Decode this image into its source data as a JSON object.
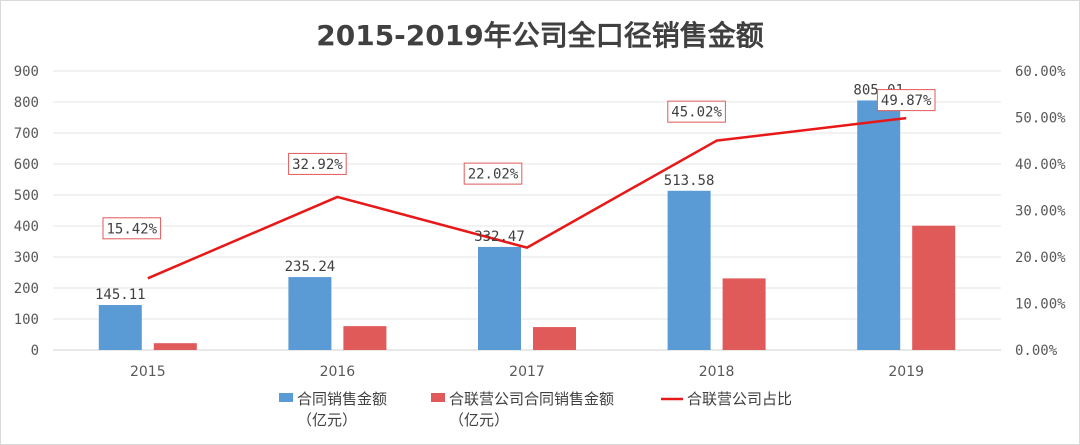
{
  "chart_data": {
    "type": "bar",
    "title": "2015-2019年公司全口径销售金额",
    "categories": [
      "2015",
      "2016",
      "2017",
      "2018",
      "2019"
    ],
    "ylim": [
      0,
      900
    ],
    "y2lim": [
      0,
      60
    ],
    "yticks": [
      "0",
      "100",
      "200",
      "300",
      "400",
      "500",
      "600",
      "700",
      "800",
      "900"
    ],
    "y2ticks": [
      "0.00%",
      "10.00%",
      "20.00%",
      "30.00%",
      "40.00%",
      "50.00%",
      "60.00%"
    ],
    "grid": true,
    "legend_position": "bottom",
    "series": [
      {
        "name": "合同销售金额（亿元）",
        "legend_lines": [
          "合同销售金额",
          "（亿元）"
        ],
        "type": "bar",
        "axis": "left",
        "color": "#5b9bd5",
        "values": [
          145.11,
          235.24,
          332.47,
          513.58,
          805.01
        ],
        "labels": [
          "145.11",
          "235.24",
          "332.47",
          "513.58",
          "805.01"
        ]
      },
      {
        "name": "合联营公司合同销售金额（亿元）",
        "legend_lines": [
          "合联营公司合同销售金额",
          "（亿元）"
        ],
        "type": "bar",
        "axis": "left",
        "color": "#e05a5a",
        "values": [
          22,
          77,
          74,
          231,
          401
        ]
      },
      {
        "name": "合联营公司占比",
        "legend_lines": [
          "合联营公司占比"
        ],
        "type": "line",
        "axis": "right",
        "color": "#e81818",
        "values": [
          15.42,
          32.92,
          22.02,
          45.02,
          49.87
        ],
        "labels": [
          "15.42%",
          "32.92%",
          "22.02%",
          "45.02%",
          "49.87%"
        ]
      }
    ]
  }
}
